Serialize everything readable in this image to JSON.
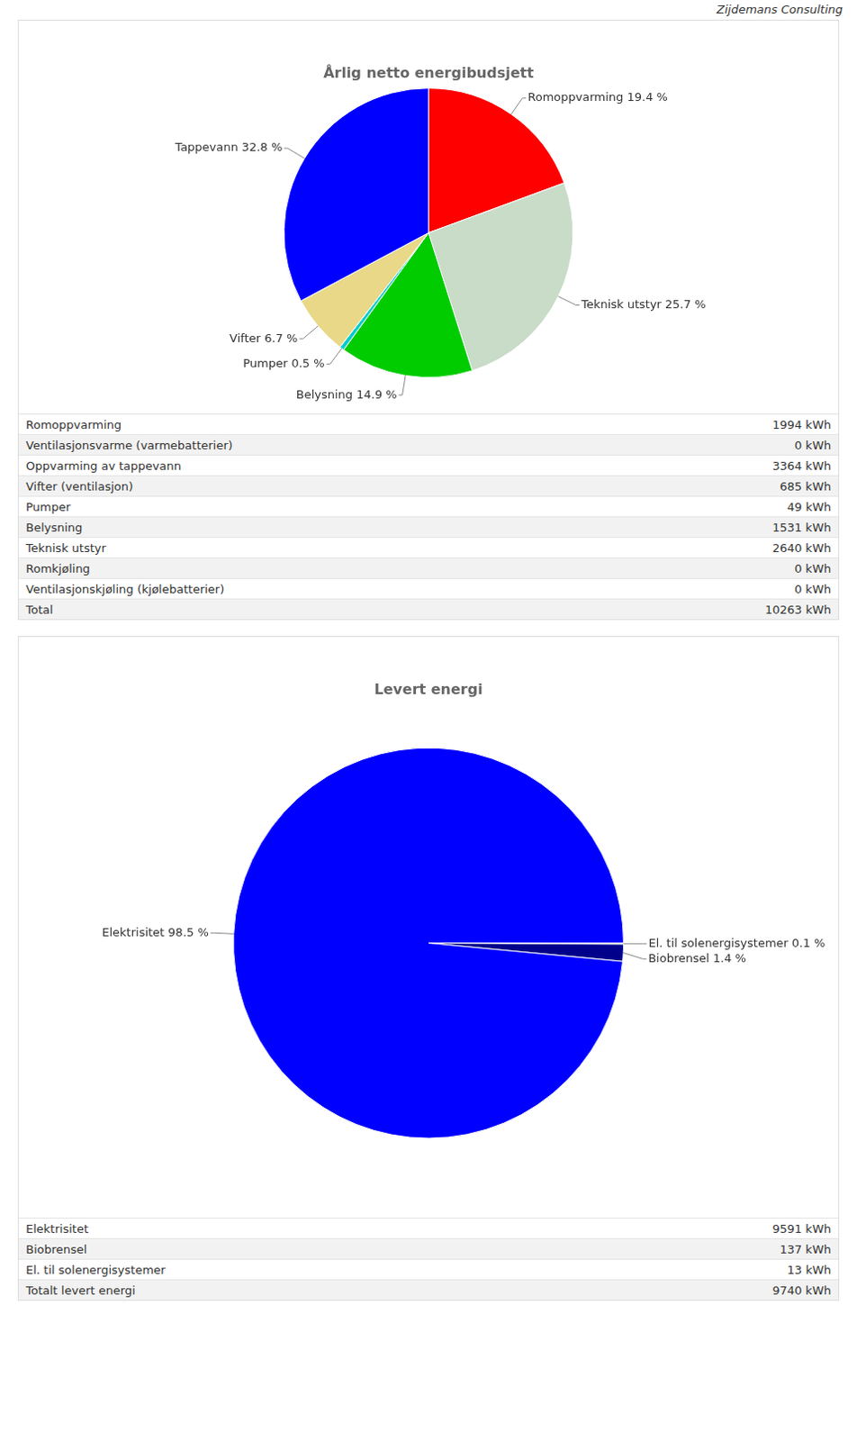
{
  "chart_data": [
    {
      "type": "pie",
      "title": "Årlig netto energibudsjett",
      "annotations": [
        "Zijdemans Consulting"
      ],
      "categories": [
        "Romoppvarming 19.4 %",
        "Teknisk utstyr 25.7 %",
        "Belysning 14.9 %",
        "Pumper 0.5 %",
        "Vifter 6.7 %",
        "Tappevann 32.8 %"
      ],
      "values": [
        19.4,
        25.7,
        14.9,
        0.5,
        6.7,
        32.8
      ],
      "colors": [
        "#ff0000",
        "#c8dcc8",
        "#00cc00",
        "#00cccc",
        "#e8d888",
        "#0000ff"
      ],
      "table": [
        [
          "Romoppvarming",
          "1994 kWh"
        ],
        [
          "Ventilasjonsvarme (varmebatterier)",
          "0 kWh"
        ],
        [
          "Oppvarming av tappevann",
          "3364 kWh"
        ],
        [
          "Vifter (ventilasjon)",
          "685 kWh"
        ],
        [
          "Pumper",
          "49 kWh"
        ],
        [
          "Belysning",
          "1531 kWh"
        ],
        [
          "Teknisk utstyr",
          "2640 kWh"
        ],
        [
          "Romkjøling",
          "0 kWh"
        ],
        [
          "Ventilasjonskjøling (kjølebatterier)",
          "0 kWh"
        ],
        [
          "Total",
          "10263 kWh"
        ]
      ]
    },
    {
      "type": "pie",
      "title": "Levert energi",
      "categories": [
        "El. til solenergisystemer 0.1 %",
        "Biobrensel 1.4 %",
        "Elektrisitet 98.5 %"
      ],
      "values": [
        0.1,
        1.4,
        98.5
      ],
      "colors": [
        "#00ff00",
        "#00008b",
        "#0000ff"
      ],
      "table": [
        [
          "Elektrisitet",
          "9591 kWh"
        ],
        [
          "Biobrensel",
          "137 kWh"
        ],
        [
          "El. til solenergisystemer",
          "13 kWh"
        ],
        [
          "Totalt levert energi",
          "9740 kWh"
        ]
      ]
    }
  ]
}
